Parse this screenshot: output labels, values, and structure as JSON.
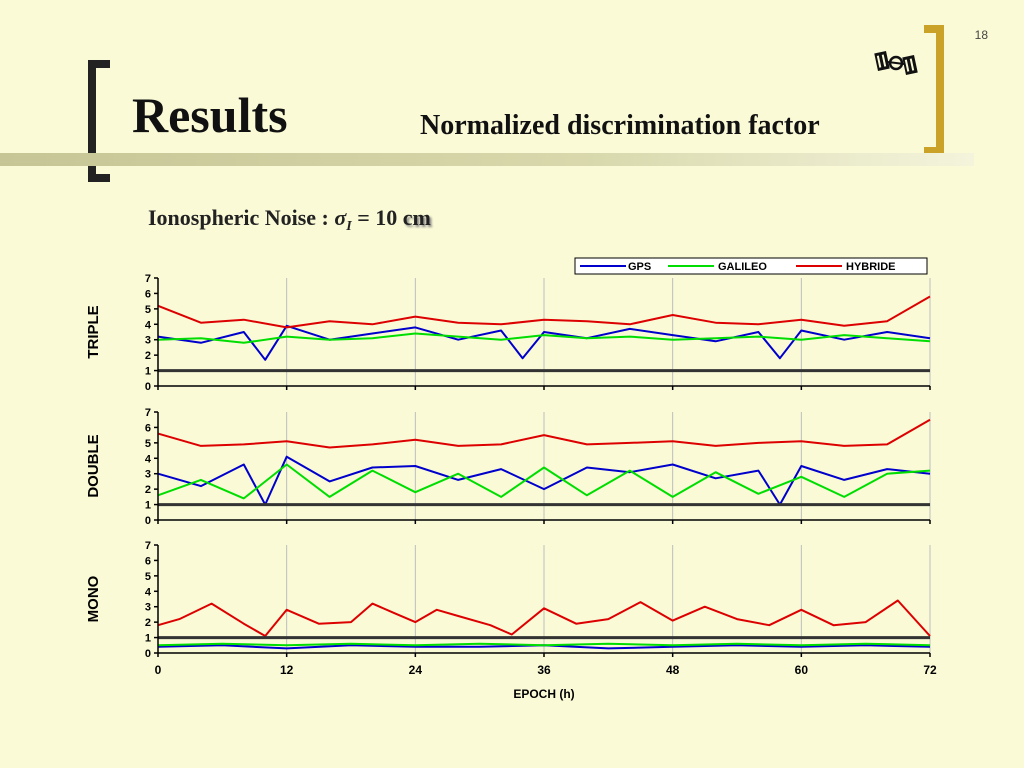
{
  "slide_number": "18",
  "title": "Results",
  "subtitle": "Normalized discrimination factor",
  "noise": {
    "label": "Ionospheric Noise :",
    "sigma": "σ",
    "subscript": "I",
    "equals": "= 10",
    "unit": "cm"
  },
  "logo_icon": "satellite-icon",
  "colors": {
    "background": "#FAFAD7",
    "GPS": "#0000CC",
    "GALILEO": "#00DD00",
    "HYBRIDE": "#DD0000",
    "threshold": "#333333",
    "bracket_left": "#222222",
    "bracket_right": "#C9A227"
  },
  "chart_data": {
    "type": "line",
    "xlabel": "EPOCH (h)",
    "xlim": [
      0,
      72
    ],
    "xticks": [
      "0",
      "12",
      "24",
      "36",
      "48",
      "60",
      "72"
    ],
    "ylim": [
      0,
      7
    ],
    "yticks": [
      "0",
      "1",
      "2",
      "3",
      "4",
      "5",
      "6",
      "7"
    ],
    "legend": [
      "GPS",
      "GALILEO",
      "HYBRIDE"
    ],
    "legend_position": "top-right",
    "grid": "vertical",
    "threshold_y": 1,
    "panels": [
      {
        "ylabel": "TRIPLE",
        "series": [
          {
            "name": "GPS",
            "color": "#0000CC",
            "x": [
              0,
              4,
              8,
              10,
              12,
              16,
              20,
              24,
              28,
              32,
              34,
              36,
              40,
              44,
              48,
              52,
              56,
              58,
              60,
              64,
              68,
              72
            ],
            "y": [
              3.2,
              2.8,
              3.5,
              1.7,
              3.9,
              3.0,
              3.4,
              3.8,
              3.0,
              3.6,
              1.8,
              3.5,
              3.1,
              3.7,
              3.3,
              2.9,
              3.5,
              1.8,
              3.6,
              3.0,
              3.5,
              3.1
            ]
          },
          {
            "name": "GALILEO",
            "color": "#00DD00",
            "x": [
              0,
              4,
              8,
              12,
              16,
              20,
              24,
              28,
              32,
              36,
              40,
              44,
              48,
              52,
              56,
              60,
              64,
              68,
              72
            ],
            "y": [
              3.0,
              3.1,
              2.8,
              3.2,
              3.0,
              3.1,
              3.4,
              3.2,
              3.0,
              3.3,
              3.1,
              3.2,
              3.0,
              3.1,
              3.2,
              3.0,
              3.3,
              3.1,
              2.9
            ]
          },
          {
            "name": "HYBRIDE",
            "color": "#DD0000",
            "x": [
              0,
              4,
              8,
              12,
              16,
              20,
              24,
              28,
              32,
              36,
              40,
              44,
              48,
              52,
              56,
              60,
              64,
              68,
              72
            ],
            "y": [
              5.2,
              4.1,
              4.3,
              3.8,
              4.2,
              4.0,
              4.5,
              4.1,
              4.0,
              4.3,
              4.2,
              4.0,
              4.6,
              4.1,
              4.0,
              4.3,
              3.9,
              4.2,
              5.8
            ]
          }
        ]
      },
      {
        "ylabel": "DOUBLE",
        "series": [
          {
            "name": "GPS",
            "color": "#0000CC",
            "x": [
              0,
              4,
              8,
              10,
              12,
              16,
              20,
              24,
              28,
              32,
              36,
              40,
              44,
              48,
              52,
              56,
              58,
              60,
              64,
              68,
              72
            ],
            "y": [
              3.0,
              2.2,
              3.6,
              1.0,
              4.1,
              2.5,
              3.4,
              3.5,
              2.6,
              3.3,
              2.0,
              3.4,
              3.1,
              3.6,
              2.7,
              3.2,
              1.0,
              3.5,
              2.6,
              3.3,
              3.0
            ]
          },
          {
            "name": "GALILEO",
            "color": "#00DD00",
            "x": [
              0,
              4,
              8,
              12,
              16,
              20,
              24,
              28,
              32,
              36,
              40,
              44,
              48,
              52,
              56,
              60,
              64,
              68,
              72
            ],
            "y": [
              1.6,
              2.6,
              1.4,
              3.6,
              1.5,
              3.2,
              1.8,
              3.0,
              1.5,
              3.4,
              1.6,
              3.2,
              1.5,
              3.1,
              1.7,
              2.8,
              1.5,
              3.0,
              3.2
            ]
          },
          {
            "name": "HYBRIDE",
            "color": "#DD0000",
            "x": [
              0,
              4,
              8,
              12,
              16,
              20,
              24,
              28,
              32,
              36,
              40,
              44,
              48,
              52,
              56,
              60,
              64,
              68,
              72
            ],
            "y": [
              5.6,
              4.8,
              4.9,
              5.1,
              4.7,
              4.9,
              5.2,
              4.8,
              4.9,
              5.5,
              4.9,
              5.0,
              5.1,
              4.8,
              5.0,
              5.1,
              4.8,
              4.9,
              6.5
            ]
          }
        ]
      },
      {
        "ylabel": "MONO",
        "series": [
          {
            "name": "GPS",
            "color": "#0000CC",
            "x": [
              0,
              6,
              12,
              18,
              24,
              30,
              36,
              42,
              48,
              54,
              60,
              66,
              72
            ],
            "y": [
              0.4,
              0.5,
              0.3,
              0.5,
              0.4,
              0.4,
              0.5,
              0.3,
              0.4,
              0.5,
              0.4,
              0.5,
              0.4
            ]
          },
          {
            "name": "GALILEO",
            "color": "#00DD00",
            "x": [
              0,
              6,
              12,
              18,
              24,
              30,
              36,
              42,
              48,
              54,
              60,
              66,
              72
            ],
            "y": [
              0.5,
              0.6,
              0.5,
              0.6,
              0.5,
              0.6,
              0.5,
              0.6,
              0.5,
              0.6,
              0.5,
              0.6,
              0.5
            ]
          },
          {
            "name": "HYBRIDE",
            "color": "#DD0000",
            "x": [
              0,
              2,
              5,
              8,
              10,
              12,
              15,
              18,
              20,
              22,
              24,
              26,
              28,
              31,
              33,
              36,
              39,
              42,
              45,
              48,
              51,
              54,
              57,
              60,
              63,
              66,
              69,
              72
            ],
            "y": [
              1.8,
              2.2,
              3.2,
              1.9,
              1.1,
              2.8,
              1.9,
              2.0,
              3.2,
              2.6,
              2.0,
              2.8,
              2.4,
              1.8,
              1.2,
              2.9,
              1.9,
              2.2,
              3.3,
              2.1,
              3.0,
              2.2,
              1.8,
              2.8,
              1.8,
              2.0,
              3.4,
              1.1
            ]
          }
        ]
      }
    ]
  }
}
